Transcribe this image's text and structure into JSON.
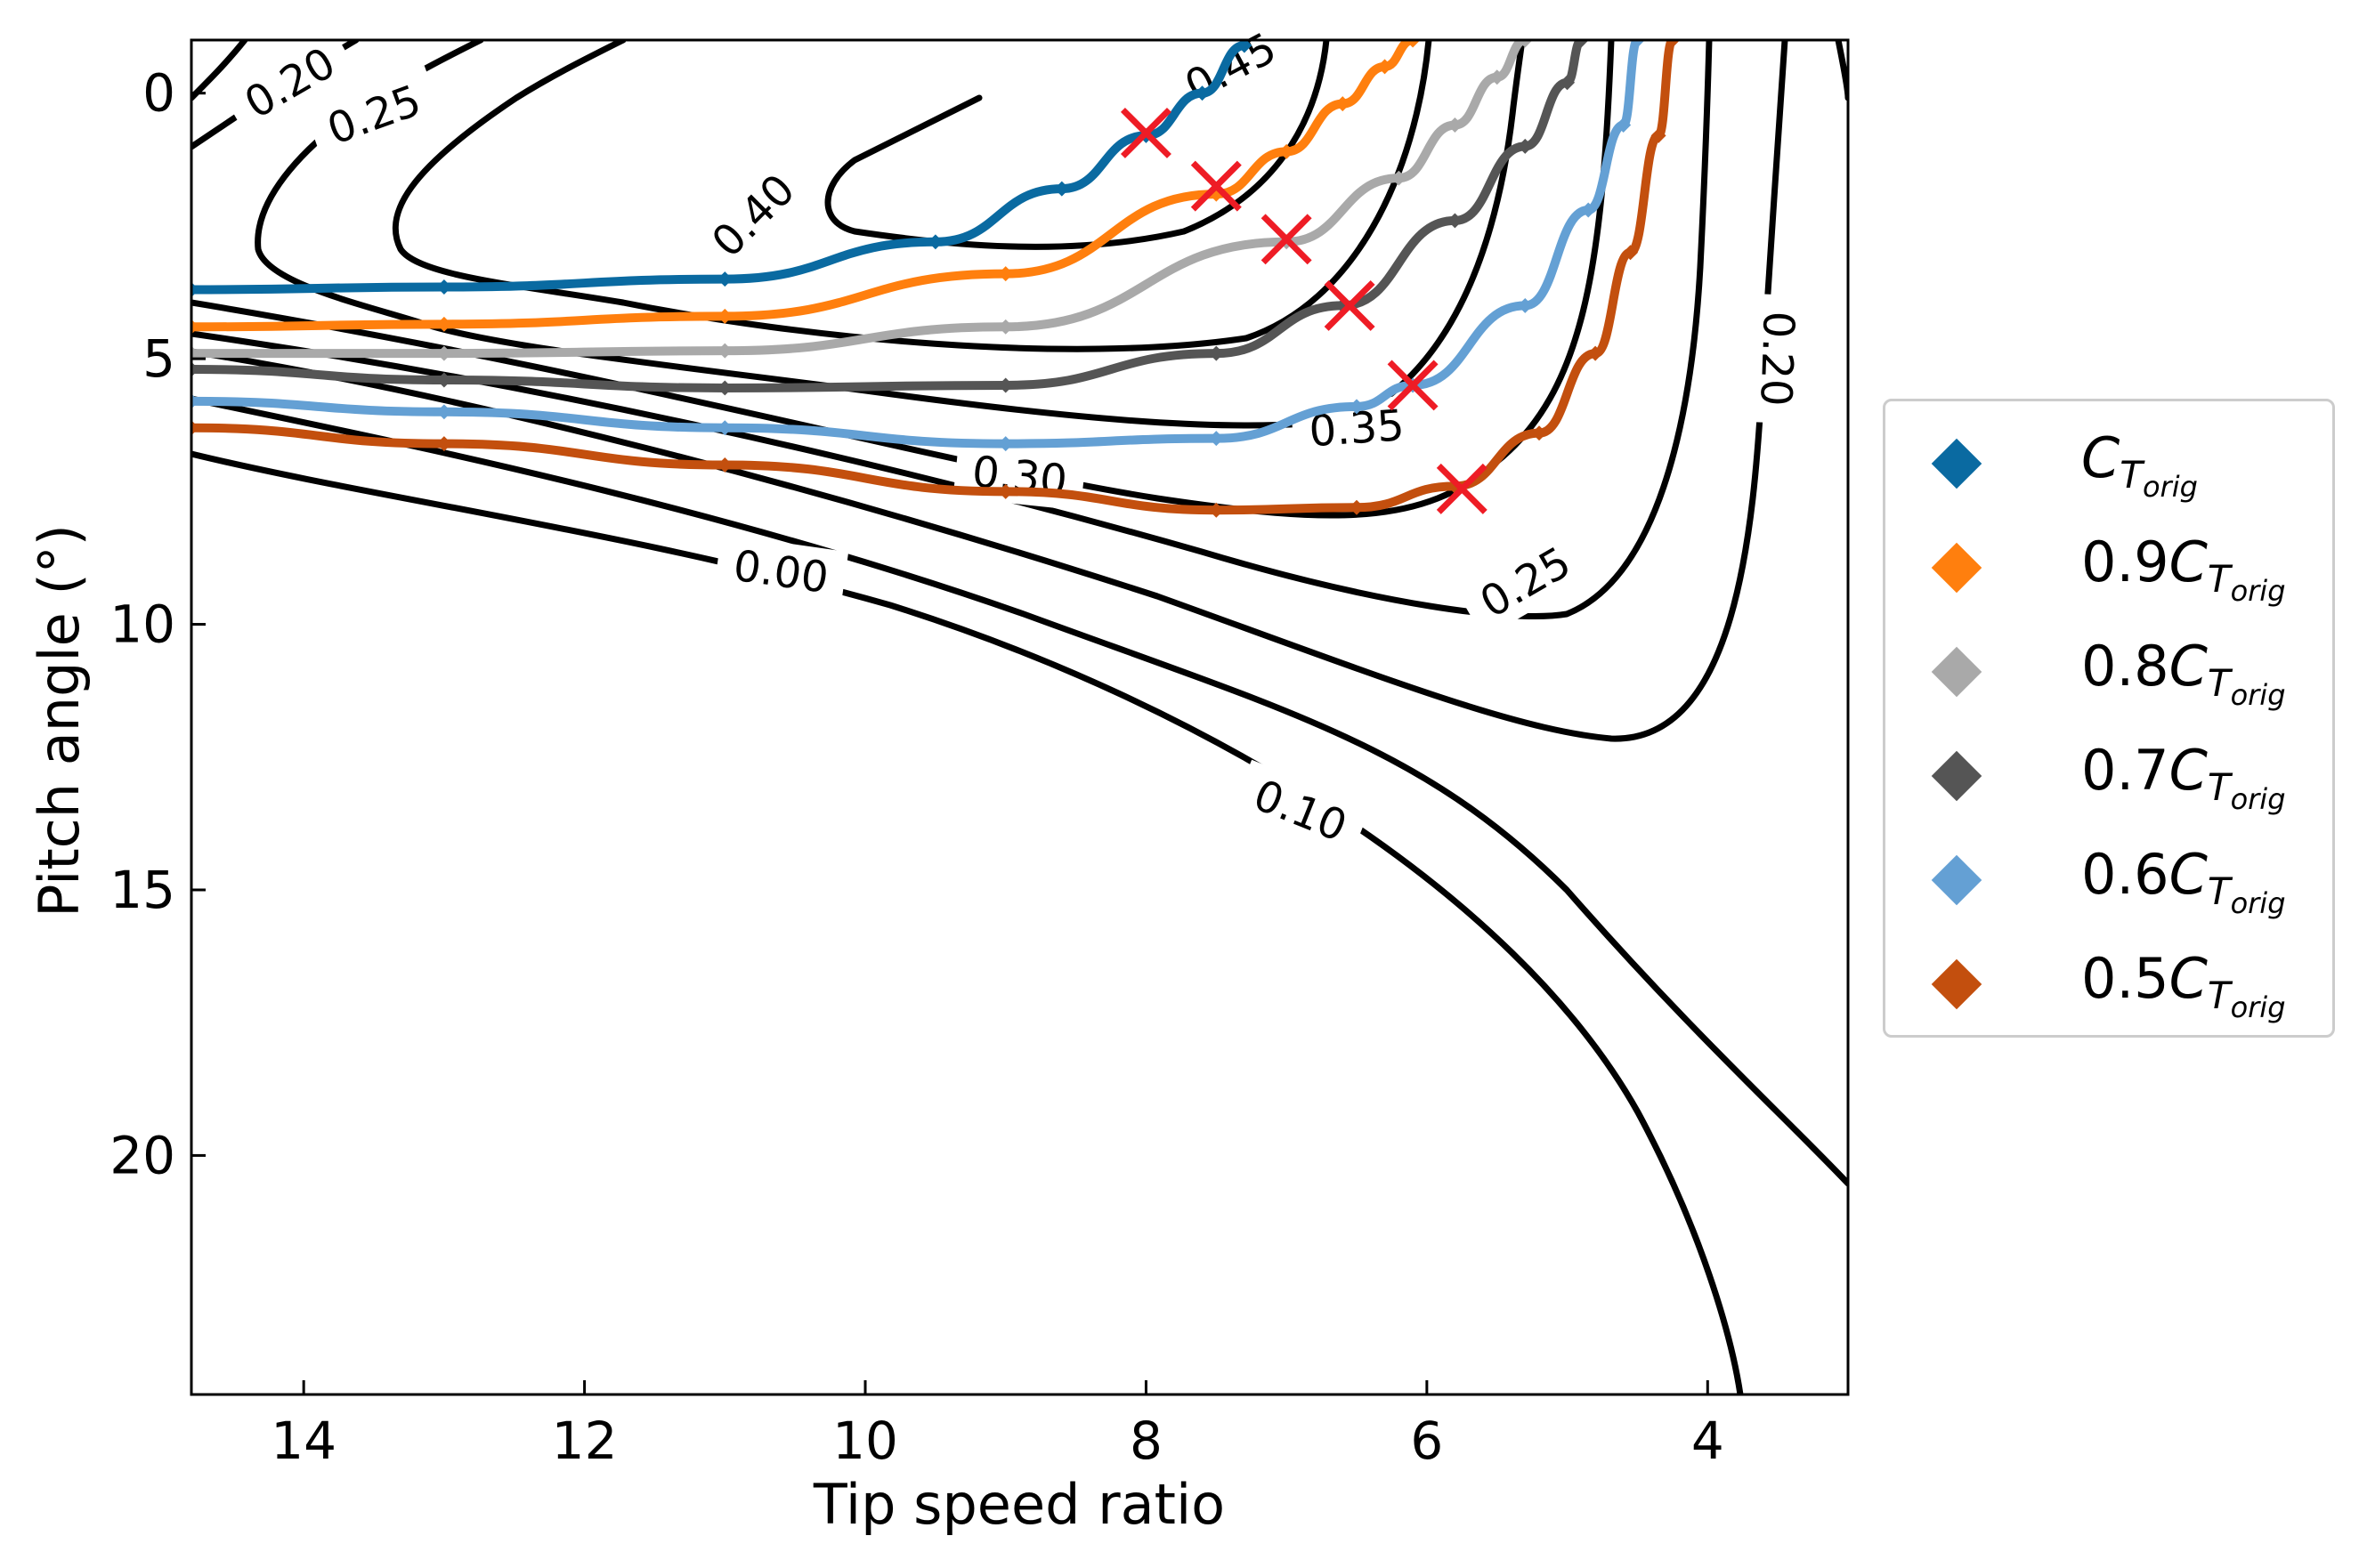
{
  "chart_data": {
    "type": "contour",
    "xlabel": "Tip speed ratio",
    "ylabel": "Pitch angle (°)",
    "xlim": [
      14.8,
      3.0
    ],
    "ylim": [
      24.5,
      -1.0
    ],
    "x_ticks": [
      14,
      12,
      10,
      8,
      6,
      4
    ],
    "y_ticks": [
      0,
      5,
      10,
      15,
      20
    ],
    "contour_levels": [
      {
        "level": "0.00",
        "label": "0.00",
        "label_at": [
          10.6,
          9.0
        ],
        "label_angle_deg": 8
      },
      {
        "level": "0.10",
        "label": "0.10",
        "label_at": [
          6.9,
          13.5
        ],
        "label_angle_deg": 22
      },
      {
        "level": "0.20",
        "label": "0.20",
        "label_at": [
          3.5,
          5.0
        ],
        "label_angle_deg": 92
      },
      {
        "level": "0.20",
        "label": "0.20",
        "label_at": [
          14.1,
          -0.2
        ],
        "label_angle_deg": -30
      },
      {
        "level": "0.25",
        "label": "0.25",
        "label_at": [
          5.3,
          9.2
        ],
        "label_angle_deg": -30
      },
      {
        "level": "0.25",
        "label": "0.25",
        "label_at": [
          13.5,
          0.4
        ],
        "label_angle_deg": -20
      },
      {
        "level": "0.30",
        "label": "0.30",
        "label_at": [
          8.9,
          7.2
        ],
        "label_angle_deg": 6
      },
      {
        "level": "0.35",
        "label": "0.35",
        "label_at": [
          6.5,
          6.3
        ],
        "label_angle_deg": -4
      },
      {
        "level": "0.40",
        "label": "0.40",
        "label_at": [
          10.8,
          2.3
        ],
        "label_angle_deg": -45
      },
      {
        "level": "0.45",
        "label": "0.45",
        "label_at": [
          7.4,
          -0.5
        ],
        "label_angle_deg": -28
      }
    ],
    "series": [
      {
        "name": "C_T_orig",
        "label_coef": "",
        "label_sym": "C",
        "label_sub": "T",
        "label_subsub": "orig",
        "color": "#0a6aa1",
        "x": [
          14.8,
          13.0,
          11.0,
          9.5,
          8.6,
          8.0,
          7.6,
          7.3
        ],
        "y": [
          3.7,
          3.65,
          3.5,
          2.8,
          1.8,
          0.8,
          0.0,
          -0.9
        ]
      },
      {
        "name": "0.9C_T_orig",
        "label_coef": "0.9",
        "label_sym": "C",
        "label_sub": "T",
        "label_subsub": "orig",
        "color": "#ff7f0e",
        "x": [
          14.8,
          13.0,
          11.0,
          9.0,
          7.5,
          7.0,
          6.6,
          6.3,
          6.1
        ],
        "y": [
          4.4,
          4.35,
          4.2,
          3.4,
          1.9,
          1.1,
          0.2,
          -0.5,
          -1.0
        ]
      },
      {
        "name": "0.8C_T_orig",
        "label_coef": "0.8",
        "label_sym": "C",
        "label_sub": "T",
        "label_subsub": "orig",
        "color": "#a9a9a9",
        "x": [
          14.8,
          13.0,
          11.0,
          9.0,
          7.0,
          6.2,
          5.8,
          5.5,
          5.3
        ],
        "y": [
          4.9,
          4.9,
          4.85,
          4.4,
          2.8,
          1.6,
          0.6,
          -0.3,
          -1.0
        ]
      },
      {
        "name": "0.7C_T_orig",
        "label_coef": "0.7",
        "label_sym": "C",
        "label_sub": "T",
        "label_subsub": "orig",
        "color": "#555555",
        "x": [
          14.8,
          13.0,
          11.0,
          9.0,
          7.5,
          6.6,
          5.8,
          5.3,
          5.0,
          4.9
        ],
        "y": [
          5.2,
          5.4,
          5.55,
          5.5,
          4.9,
          4.0,
          2.4,
          1.0,
          -0.2,
          -1.0
        ]
      },
      {
        "name": "0.6C_T_orig",
        "label_coef": "0.6",
        "label_sym": "C",
        "label_sub": "T",
        "label_subsub": "orig",
        "color": "#64a0d4",
        "x": [
          14.8,
          13.0,
          11.0,
          9.0,
          7.5,
          6.5,
          6.1,
          5.3,
          4.85,
          4.6,
          4.5
        ],
        "y": [
          5.8,
          6.0,
          6.3,
          6.6,
          6.5,
          5.9,
          5.5,
          4.0,
          2.2,
          0.6,
          -1.0
        ]
      },
      {
        "name": "0.5C_T_orig",
        "label_coef": "0.5",
        "label_sym": "C",
        "label_sub": "T",
        "label_subsub": "orig",
        "color": "#c34f0e",
        "x": [
          14.8,
          13.0,
          11.0,
          9.0,
          7.5,
          6.5,
          5.8,
          5.2,
          4.8,
          4.55,
          4.35,
          4.25
        ],
        "y": [
          6.3,
          6.6,
          7.0,
          7.5,
          7.85,
          7.8,
          7.4,
          6.4,
          4.9,
          3.0,
          0.8,
          -1.0
        ]
      }
    ],
    "optimal_points": {
      "marker": "x",
      "color": "#ee1c25",
      "x": [
        8.0,
        7.5,
        7.0,
        6.55,
        6.1,
        5.75
      ],
      "y": [
        0.75,
        1.75,
        2.75,
        4.0,
        5.5,
        7.45
      ]
    },
    "legend_position": "outside-right"
  }
}
